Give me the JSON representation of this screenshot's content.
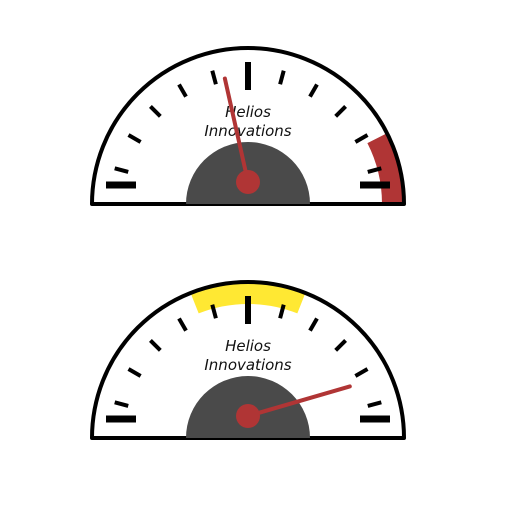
{
  "colors": {
    "outline": "#000000",
    "face": "#ffffff",
    "hub": "#4a4a4a",
    "needle": "#b03535",
    "pivot": "#b03535",
    "red_zone": "#b03535",
    "yellow_zone": "#ffe833",
    "tick": "#000000"
  },
  "gauges": [
    {
      "brand_line1": "Helios",
      "brand_line2": "Innovations",
      "needle_value": 0.43,
      "zone": {
        "color": "red",
        "start": 0.85,
        "end": 1.0
      }
    },
    {
      "brand_line1": "Helios",
      "brand_line2": "Innovations",
      "needle_value": 0.91,
      "zone": {
        "color": "yellow",
        "start": 0.38,
        "end": 0.62
      }
    }
  ]
}
